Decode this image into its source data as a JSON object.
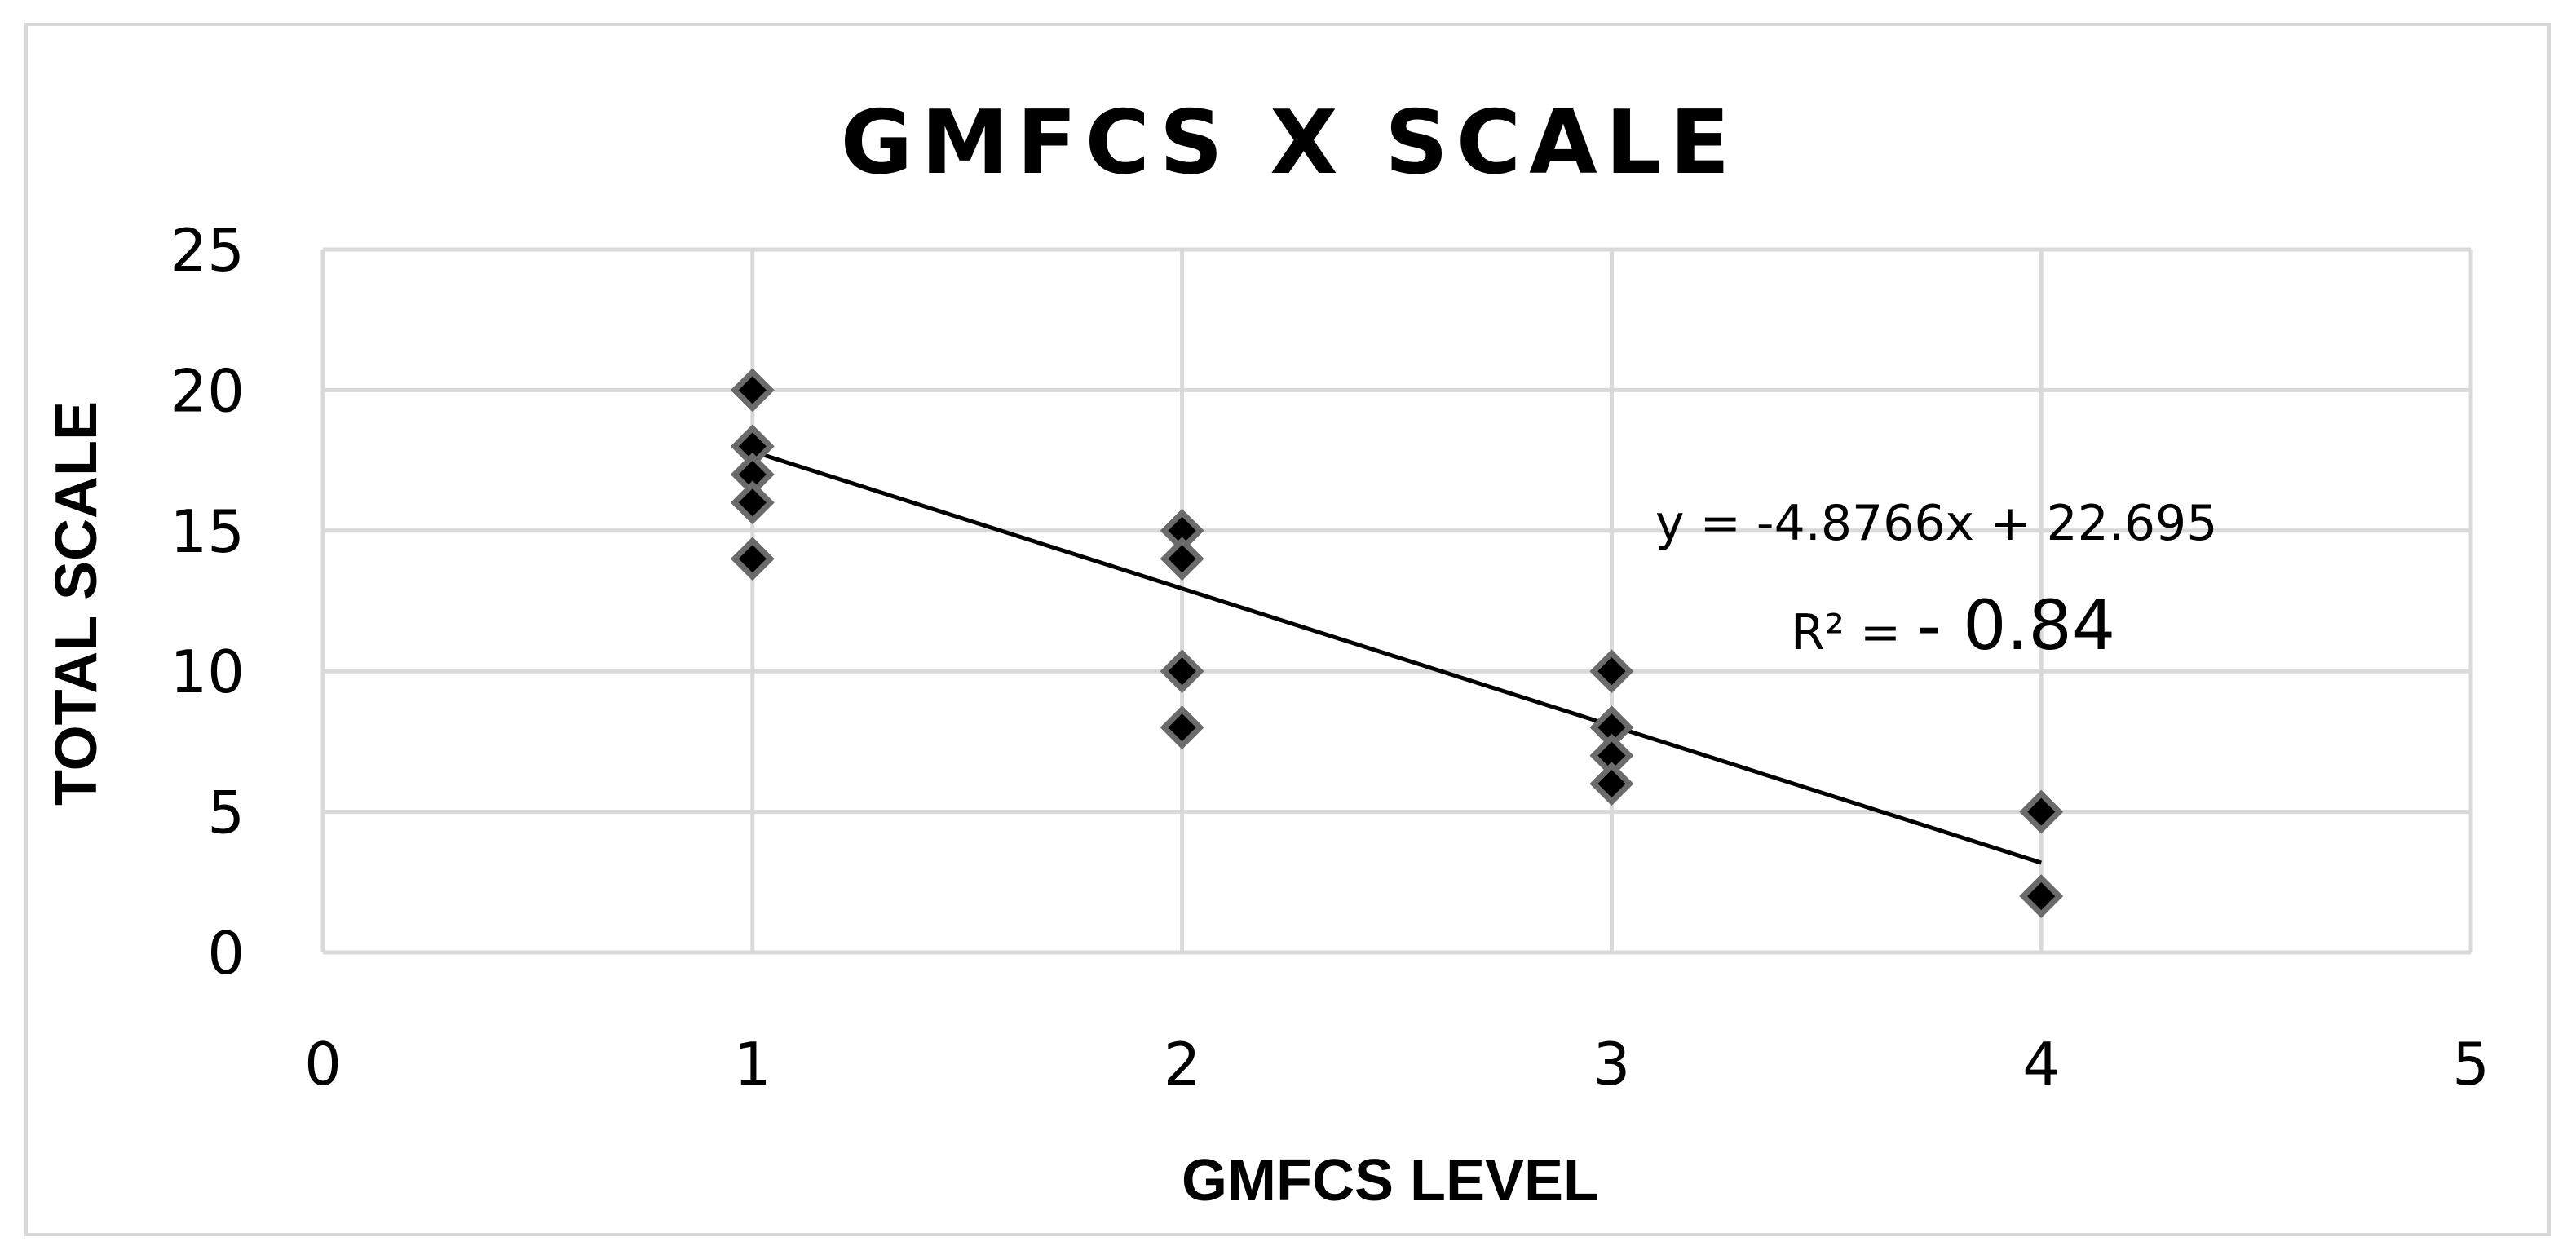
{
  "chart_data": {
    "type": "scatter",
    "title": "GMFCS X SCALE",
    "xlabel": "GMFCS LEVEL",
    "ylabel": "TOTAL SCALE",
    "xlim": [
      0,
      5
    ],
    "ylim": [
      0,
      25
    ],
    "x_ticks": [
      "0",
      "1",
      "2",
      "3",
      "4",
      "5"
    ],
    "y_ticks": [
      "0",
      "5",
      "10",
      "15",
      "20",
      "25"
    ],
    "grid": true,
    "marker": "diamond",
    "colors": {
      "marker_fill": "#000000",
      "marker_stroke": "#6b6b6b",
      "grid": "#d9d9d9",
      "trendline": "#000000",
      "frame": "#d9d9d9"
    },
    "series": [
      {
        "x": [
          1,
          1,
          1,
          1,
          1,
          2,
          2,
          2,
          2,
          3,
          3,
          3,
          3,
          4,
          4
        ],
        "y": [
          20,
          18,
          17,
          16,
          14,
          15,
          14,
          10,
          8,
          10,
          8,
          7,
          6,
          5,
          2
        ]
      }
    ],
    "trendline": {
      "type": "linear",
      "slope": -4.8766,
      "intercept": 22.695,
      "x_range": [
        1,
        4
      ]
    },
    "annotations": {
      "equation": "y = -4.8766x + 22.695",
      "r2_prefix": "R² = ",
      "r2_value": "- 0.84"
    }
  }
}
